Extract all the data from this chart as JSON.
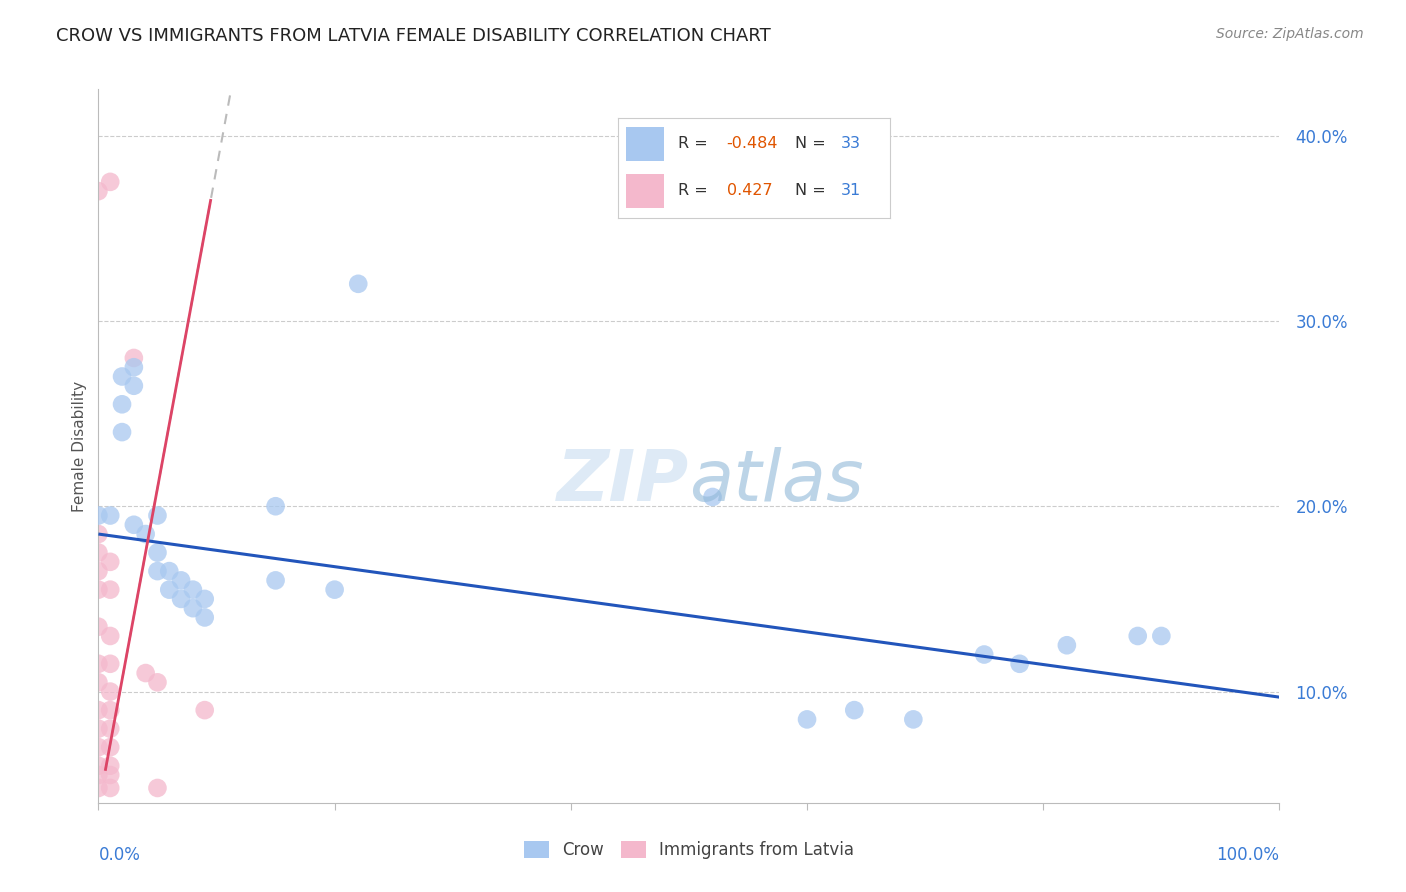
{
  "title": "CROW VS IMMIGRANTS FROM LATVIA FEMALE DISABILITY CORRELATION CHART",
  "source": "Source: ZipAtlas.com",
  "ylabel": "Female Disability",
  "xlim": [
    0.0,
    1.0
  ],
  "ylim": [
    0.04,
    0.425
  ],
  "yticks": [
    0.1,
    0.2,
    0.3,
    0.4
  ],
  "ytick_labels": [
    "10.0%",
    "20.0%",
    "30.0%",
    "40.0%"
  ],
  "crow_R": "-0.484",
  "crow_N": "33",
  "latvia_R": "0.427",
  "latvia_N": "31",
  "crow_color": "#a8c8f0",
  "latvia_color": "#f4b8cc",
  "crow_line_color": "#2255bb",
  "latvia_line_color": "#dd4466",
  "crow_line": [
    [
      0.0,
      0.185
    ],
    [
      1.0,
      0.097
    ]
  ],
  "latvia_line": [
    [
      0.006,
      0.055
    ],
    [
      0.13,
      0.42
    ]
  ],
  "latvia_dashed_line": [
    [
      0.006,
      0.055
    ],
    [
      0.32,
      0.42
    ]
  ],
  "crow_points": [
    [
      0.0,
      0.195
    ],
    [
      0.01,
      0.195
    ],
    [
      0.02,
      0.27
    ],
    [
      0.03,
      0.265
    ],
    [
      0.02,
      0.255
    ],
    [
      0.03,
      0.275
    ],
    [
      0.02,
      0.24
    ],
    [
      0.03,
      0.19
    ],
    [
      0.04,
      0.185
    ],
    [
      0.05,
      0.195
    ],
    [
      0.05,
      0.175
    ],
    [
      0.05,
      0.165
    ],
    [
      0.06,
      0.165
    ],
    [
      0.06,
      0.155
    ],
    [
      0.07,
      0.16
    ],
    [
      0.07,
      0.15
    ],
    [
      0.08,
      0.155
    ],
    [
      0.08,
      0.145
    ],
    [
      0.09,
      0.15
    ],
    [
      0.09,
      0.14
    ],
    [
      0.15,
      0.2
    ],
    [
      0.15,
      0.16
    ],
    [
      0.2,
      0.155
    ],
    [
      0.22,
      0.32
    ],
    [
      0.52,
      0.205
    ],
    [
      0.6,
      0.085
    ],
    [
      0.64,
      0.09
    ],
    [
      0.69,
      0.085
    ],
    [
      0.75,
      0.12
    ],
    [
      0.78,
      0.115
    ],
    [
      0.82,
      0.125
    ],
    [
      0.88,
      0.13
    ],
    [
      0.9,
      0.13
    ]
  ],
  "latvia_points": [
    [
      0.0,
      0.37
    ],
    [
      0.01,
      0.375
    ],
    [
      0.0,
      0.175
    ],
    [
      0.0,
      0.185
    ],
    [
      0.0,
      0.165
    ],
    [
      0.01,
      0.17
    ],
    [
      0.0,
      0.155
    ],
    [
      0.01,
      0.155
    ],
    [
      0.0,
      0.135
    ],
    [
      0.01,
      0.13
    ],
    [
      0.0,
      0.115
    ],
    [
      0.01,
      0.115
    ],
    [
      0.0,
      0.105
    ],
    [
      0.01,
      0.1
    ],
    [
      0.0,
      0.09
    ],
    [
      0.01,
      0.09
    ],
    [
      0.0,
      0.08
    ],
    [
      0.01,
      0.08
    ],
    [
      0.0,
      0.07
    ],
    [
      0.01,
      0.07
    ],
    [
      0.0,
      0.06
    ],
    [
      0.01,
      0.06
    ],
    [
      0.0,
      0.055
    ],
    [
      0.01,
      0.055
    ],
    [
      0.03,
      0.28
    ],
    [
      0.04,
      0.11
    ],
    [
      0.05,
      0.105
    ],
    [
      0.09,
      0.09
    ],
    [
      0.0,
      0.048
    ],
    [
      0.01,
      0.048
    ],
    [
      0.05,
      0.048
    ]
  ]
}
